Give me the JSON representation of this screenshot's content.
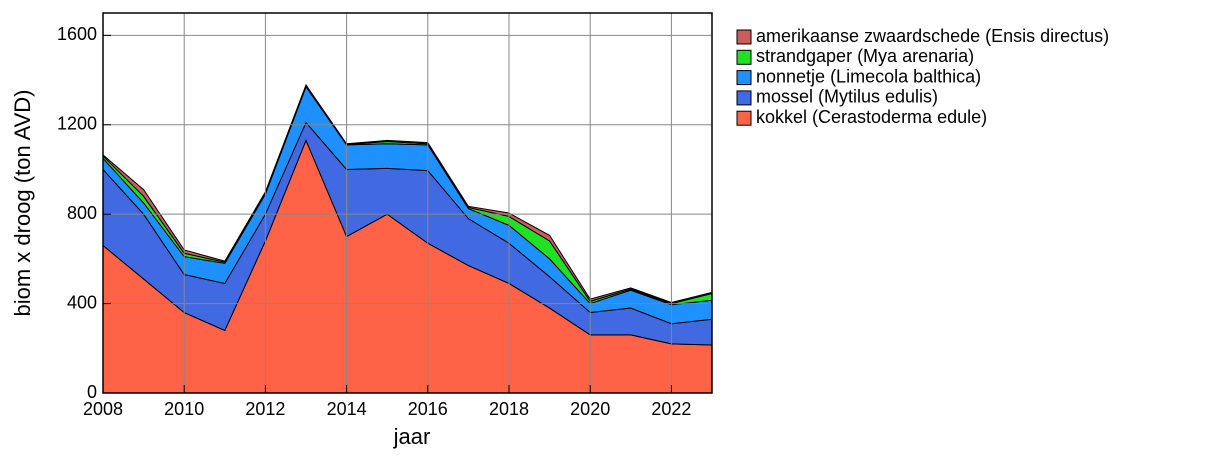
{
  "chart_data": {
    "type": "stacked_area",
    "xlabel": "jaar",
    "ylabel": "biom x droog (ton AVD)",
    "x": [
      2008,
      2009,
      2010,
      2011,
      2012,
      2013,
      2014,
      2015,
      2016,
      2017,
      2018,
      2019,
      2020,
      2021,
      2022,
      2023
    ],
    "series": [
      {
        "name": "kokkel (Cerastoderma edule)",
        "color": "#ff6347",
        "values": [
          660,
          510,
          360,
          280,
          680,
          1130,
          700,
          800,
          670,
          570,
          490,
          380,
          260,
          260,
          220,
          215
        ]
      },
      {
        "name": "mossel (Mytilus edulis)",
        "color": "#4169e1",
        "values": [
          340,
          290,
          170,
          210,
          120,
          80,
          300,
          205,
          325,
          210,
          180,
          140,
          100,
          120,
          90,
          115
        ]
      },
      {
        "name": "nonnetje (Limecola balthica)",
        "color": "#1e90ff",
        "values": [
          50,
          50,
          80,
          90,
          90,
          160,
          110,
          110,
          115,
          45,
          80,
          80,
          40,
          80,
          85,
          85
        ]
      },
      {
        "name": "strandgaper (Mya arenaria)",
        "color": "#22e022",
        "values": [
          10,
          30,
          15,
          5,
          5,
          5,
          2,
          10,
          5,
          5,
          40,
          80,
          10,
          5,
          5,
          30
        ]
      },
      {
        "name": "amerikaanse zwaardschede (Ensis directus)",
        "color": "#cd5c5c",
        "values": [
          5,
          30,
          15,
          5,
          5,
          3,
          3,
          5,
          5,
          5,
          15,
          25,
          10,
          5,
          5,
          5
        ]
      }
    ],
    "xlim": [
      2008,
      2023
    ],
    "xticks": [
      2008,
      2010,
      2012,
      2014,
      2016,
      2018,
      2020,
      2022
    ],
    "ylim": [
      0,
      1700
    ],
    "yticks": [
      0,
      400,
      800,
      1200,
      1600
    ],
    "grid": true
  }
}
